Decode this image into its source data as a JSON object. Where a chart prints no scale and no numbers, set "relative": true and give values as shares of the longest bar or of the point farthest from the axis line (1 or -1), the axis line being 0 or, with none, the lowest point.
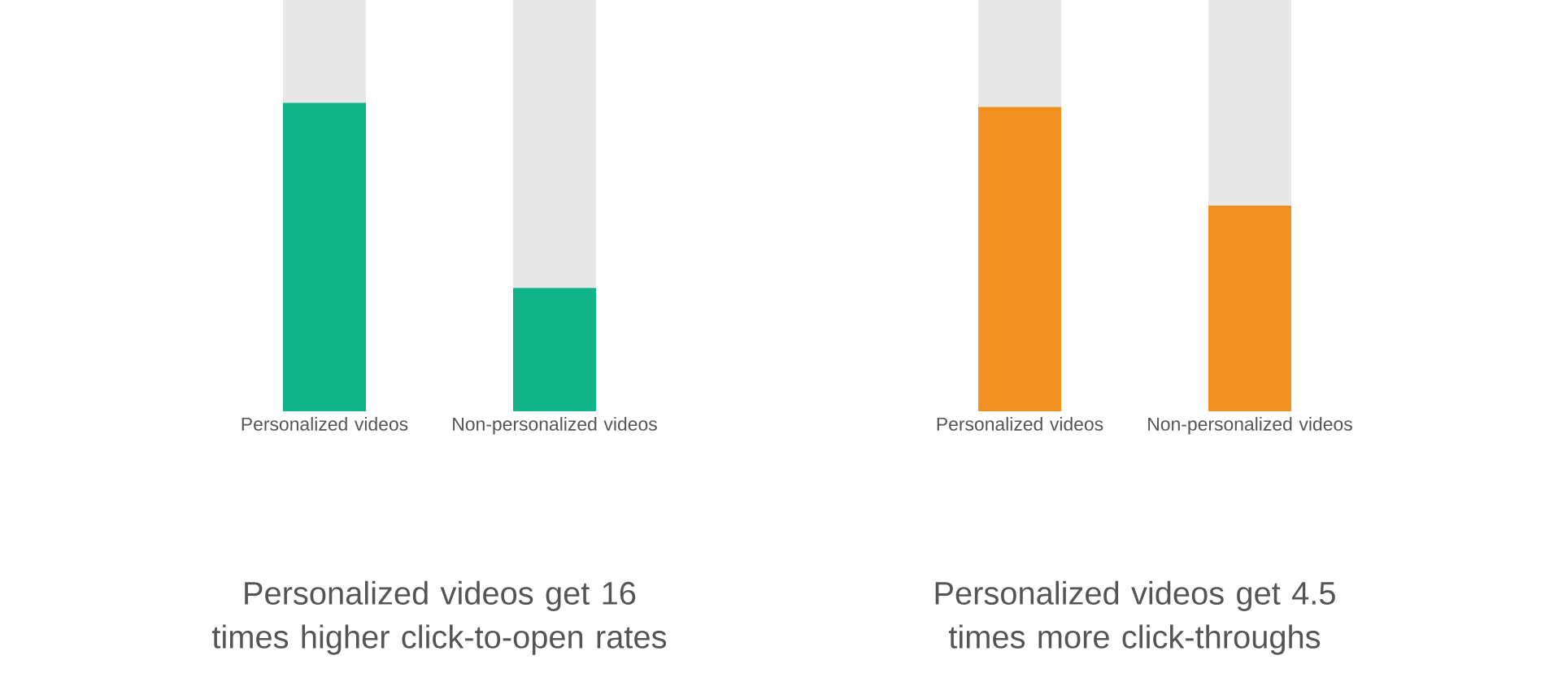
{
  "chart_data": [
    {
      "type": "bar",
      "stacked": true,
      "relative": true,
      "title": "Personalized videos get 16 times higher click-to-open rates",
      "categories": [
        "Personalized videos",
        "Non-personalized videos"
      ],
      "series": [
        {
          "color": "#13b38a",
          "values": [
            0.75,
            0.3
          ]
        },
        {
          "color": "#e8e8e8",
          "values": [
            0.25,
            0.7
          ]
        }
      ]
    },
    {
      "type": "bar",
      "stacked": true,
      "relative": true,
      "title": "Personalized videos get 4.5 times more click-throughs",
      "categories": [
        "Personalized videos",
        "Non-personalized videos"
      ],
      "series": [
        {
          "color": "#f29022",
          "values": [
            0.74,
            0.5
          ]
        },
        {
          "color": "#e8e8e8",
          "values": [
            0.26,
            0.5
          ]
        }
      ]
    }
  ]
}
